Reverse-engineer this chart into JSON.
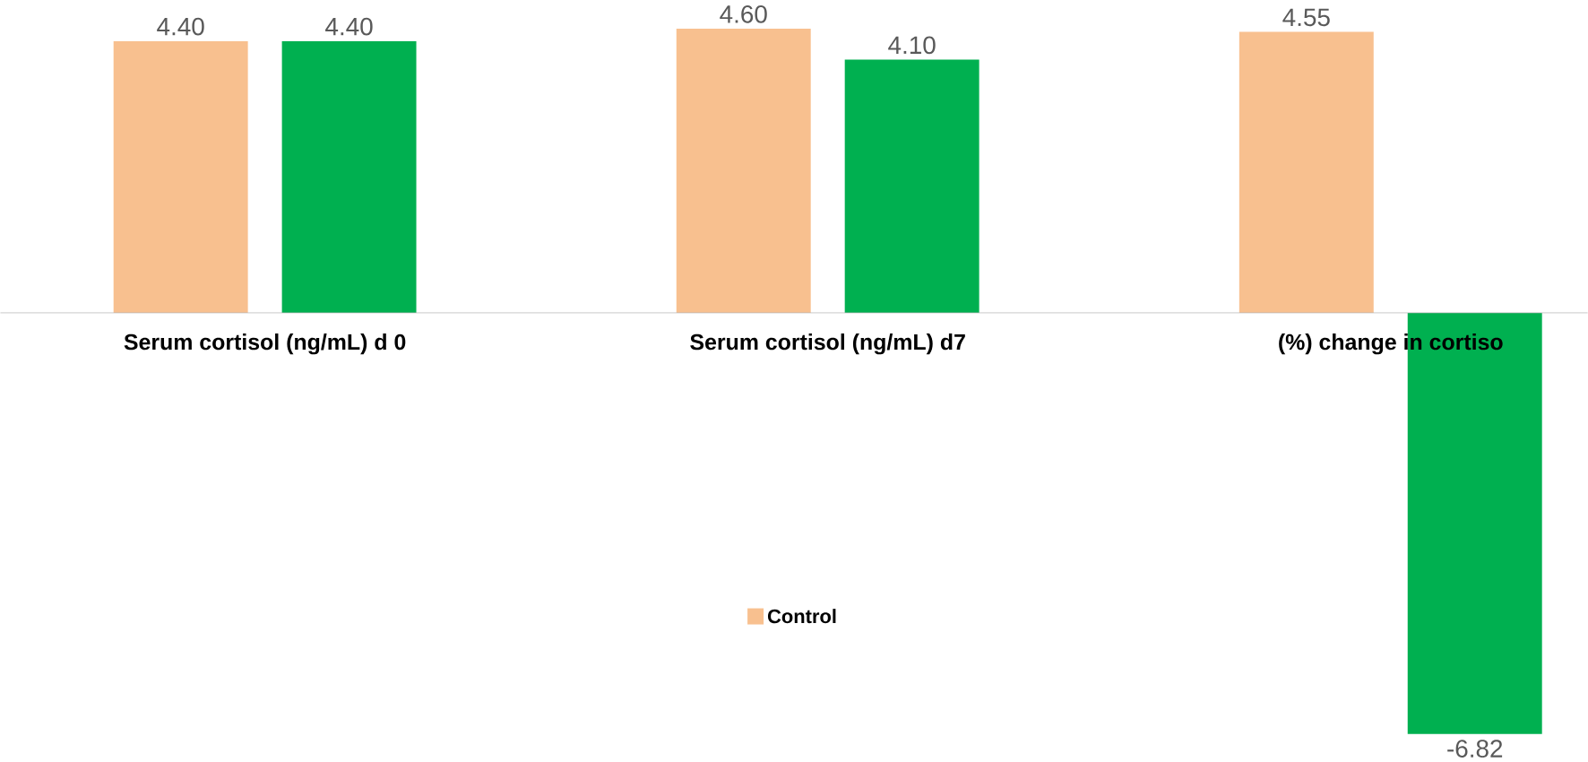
{
  "chart_data": {
    "type": "bar",
    "categories": [
      "Serum cortisol (ng/mL) d 0",
      "Serum cortisol (ng/mL) d7",
      "(%) change in cortiso"
    ],
    "series": [
      {
        "name": "Control",
        "color": "#f8c08f",
        "values": [
          4.4,
          4.6,
          4.55
        ],
        "value_labels": [
          "4.40",
          "4.60",
          "4.55"
        ]
      },
      {
        "color": "#00b050",
        "values": [
          4.4,
          4.1,
          -6.82
        ],
        "value_labels": [
          "4.40",
          "4.10",
          "-6.82"
        ]
      }
    ],
    "legend": "bottom"
  }
}
